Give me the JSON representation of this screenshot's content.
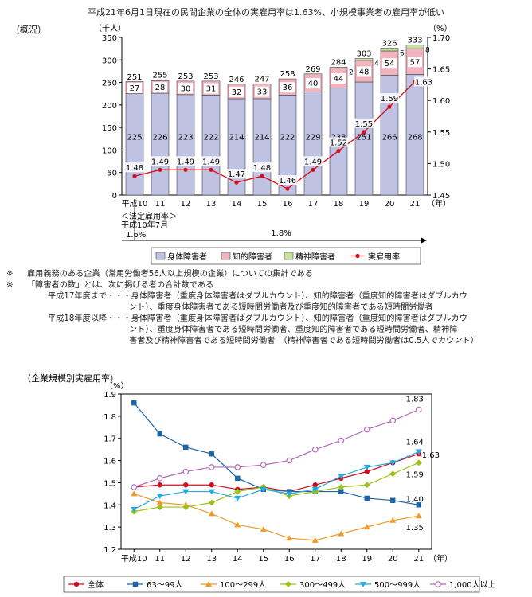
{
  "title": "平成21年6月1日現在の民間企業の全体の実雇用率は1.63%、小規模事業者の雇用率が低い",
  "chart_data": [
    {
      "type": "bar",
      "stacked": true,
      "section_label": "（概況）",
      "left_unit": "（千人）",
      "right_unit": "（%）",
      "year_suffix": "（年）",
      "categories": [
        "平成10",
        "11",
        "12",
        "13",
        "14",
        "15",
        "16",
        "17",
        "18",
        "19",
        "20",
        "21"
      ],
      "series": [
        {
          "name": "身体障害者",
          "values": [
            225,
            226,
            223,
            222,
            214,
            214,
            222,
            229,
            238,
            251,
            266,
            268
          ],
          "color": "#c0c2e4"
        },
        {
          "name": "知的障害者",
          "values": [
            27,
            28,
            30,
            31,
            32,
            33,
            36,
            40,
            44,
            48,
            54,
            57
          ],
          "color": "#f2b3be"
        },
        {
          "name": "精神障害者",
          "values": [
            null,
            null,
            null,
            null,
            null,
            null,
            null,
            null,
            2,
            4,
            6,
            8
          ],
          "color": "#c7e29a"
        }
      ],
      "totals": [
        251,
        255,
        253,
        253,
        246,
        247,
        258,
        269,
        284,
        303,
        326,
        333
      ],
      "line": {
        "name": "実雇用率",
        "values": [
          1.48,
          1.49,
          1.49,
          1.49,
          1.47,
          1.48,
          1.46,
          1.49,
          1.52,
          1.55,
          1.59,
          1.63
        ],
        "color": "#d0101a"
      },
      "ylim_left": [
        0,
        350
      ],
      "yticks_left": [
        0,
        50,
        100,
        150,
        200,
        250,
        300,
        350
      ],
      "ylim_right": [
        1.45,
        1.7
      ],
      "yticks_right": [
        "1.45",
        "1.50",
        "1.55",
        "1.60",
        "1.65",
        "1.70"
      ],
      "legal_label": "＜法定雇用率＞",
      "legal_date": "平成10年7月",
      "legal_before": "1.6%",
      "legal_after": "1.8%",
      "legend_position": "bottom"
    },
    {
      "type": "line",
      "section_label": "（企業規模別実雇用率）",
      "unit": "（%）",
      "year_suffix": "（年）",
      "categories": [
        "平成10",
        "11",
        "12",
        "13",
        "14",
        "15",
        "16",
        "17",
        "18",
        "19",
        "20",
        "21"
      ],
      "series": [
        {
          "name": "全体",
          "marker": "circle",
          "color": "#c8101e",
          "values": [
            1.48,
            1.49,
            1.49,
            1.49,
            1.47,
            1.48,
            1.46,
            1.49,
            1.52,
            1.55,
            1.59,
            1.63
          ]
        },
        {
          "name": "63～99人",
          "marker": "square",
          "color": "#1b64a8",
          "values": [
            1.86,
            1.72,
            1.66,
            1.63,
            1.52,
            1.47,
            1.46,
            1.46,
            1.46,
            1.43,
            1.42,
            1.4
          ]
        },
        {
          "name": "100～299人",
          "marker": "triangle",
          "color": "#ee9b2a",
          "values": [
            1.45,
            1.41,
            1.4,
            1.36,
            1.31,
            1.29,
            1.25,
            1.24,
            1.27,
            1.3,
            1.33,
            1.35
          ]
        },
        {
          "name": "300～499人",
          "marker": "diamond",
          "color": "#9cc31a",
          "values": [
            1.37,
            1.39,
            1.39,
            1.41,
            1.46,
            1.48,
            1.44,
            1.46,
            1.48,
            1.49,
            1.54,
            1.59
          ]
        },
        {
          "name": "500～999人",
          "marker": "triangle-down",
          "color": "#27a9e1",
          "values": [
            1.38,
            1.44,
            1.46,
            1.46,
            1.43,
            1.47,
            1.45,
            1.47,
            1.53,
            1.57,
            1.59,
            1.64
          ]
        },
        {
          "name": "1,000人以上",
          "marker": "open-circle",
          "color": "#b26bb8",
          "values": [
            1.48,
            1.52,
            1.55,
            1.57,
            1.57,
            1.58,
            1.6,
            1.65,
            1.69,
            1.74,
            1.78,
            1.83
          ]
        }
      ],
      "end_labels": [
        "1.83",
        "1.64",
        "1.63",
        "1.59",
        "1.40",
        "1.35"
      ],
      "ylim": [
        1.2,
        1.9
      ],
      "yticks": [
        "1.2",
        "1.3",
        "1.4",
        "1.5",
        "1.6",
        "1.7",
        "1.8",
        "1.9"
      ],
      "legend_position": "bottom"
    }
  ],
  "notes": {
    "mark": "※",
    "note1": "雇用義務のある企業（常用労働者56人以上規模の企業）についての集計である",
    "note2": "「障害者の数」とは、次に掲げる者の合計数である",
    "h17_lead": "平成17年度まで・・・身体障害者（重度身体障害者はダブルカウント）、知的障害者（重度知的障害者はダブルカウ",
    "h17_cont": "ント）、重度身体障害者である短時間労働者及び重度知的障害者である短時間労働者",
    "h18_lead": "平成18年度以降・・・身体障害者（重度身体障害者はダブルカウント）、知的障害者（重度知的障害者はダブルカウ",
    "h18_cont1": "ント）、重度身体障害者である短時間労働者、重度知的障害者である短時間労働者、精神障",
    "h18_cont2": "害者及び精神障害者である短時間労働者　（精神障害者である短時間労働者は0.5人でカウント）"
  }
}
